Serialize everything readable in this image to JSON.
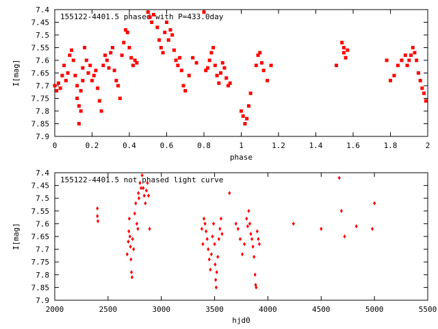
{
  "chart_data": [
    {
      "type": "scatter",
      "title": "155122-4401.5 phased with P=433.0day",
      "xlabel": "phase",
      "ylabel": "I[mag]",
      "xlim": [
        0,
        2
      ],
      "ylim": [
        7.9,
        7.4
      ],
      "y_inverted": true,
      "xticks": [
        "0",
        "0.2",
        "0.4",
        "0.6",
        "0.8",
        "1",
        "1.2",
        "1.4",
        "1.6",
        "1.8",
        "2"
      ],
      "yticks": [
        "7.4",
        "7.45",
        "7.5",
        "7.55",
        "7.6",
        "7.65",
        "7.7",
        "7.75",
        "7.8",
        "7.85",
        "7.9"
      ],
      "grid": false,
      "legend": "none",
      "marker_color": "#ff0000",
      "marker": "filled-square",
      "series": [
        {
          "points": [
            [
              0.0,
              7.7
            ],
            [
              0.01,
              7.72
            ],
            [
              0.02,
              7.69
            ],
            [
              0.03,
              7.71
            ],
            [
              0.04,
              7.66
            ],
            [
              0.05,
              7.62
            ],
            [
              0.06,
              7.68
            ],
            [
              0.07,
              7.65
            ],
            [
              0.08,
              7.58
            ],
            [
              0.09,
              7.56
            ],
            [
              0.1,
              7.6
            ],
            [
              0.11,
              7.66
            ],
            [
              0.12,
              7.7
            ],
            [
              0.12,
              7.75
            ],
            [
              0.13,
              7.78
            ],
            [
              0.13,
              7.85
            ],
            [
              0.14,
              7.8
            ],
            [
              0.14,
              7.72
            ],
            [
              0.15,
              7.63
            ],
            [
              0.15,
              7.68
            ],
            [
              0.16,
              7.55
            ],
            [
              0.17,
              7.6
            ],
            [
              0.18,
              7.65
            ],
            [
              0.19,
              7.62
            ],
            [
              0.2,
              7.68
            ],
            [
              0.21,
              7.66
            ],
            [
              0.22,
              7.64
            ],
            [
              0.23,
              7.71
            ],
            [
              0.24,
              7.76
            ],
            [
              0.25,
              7.8
            ],
            [
              0.26,
              7.62
            ],
            [
              0.27,
              7.58
            ],
            [
              0.28,
              7.6
            ],
            [
              0.29,
              7.63
            ],
            [
              0.3,
              7.57
            ],
            [
              0.31,
              7.55
            ],
            [
              0.32,
              7.64
            ],
            [
              0.33,
              7.68
            ],
            [
              0.34,
              7.7
            ],
            [
              0.35,
              7.75
            ],
            [
              0.36,
              7.58
            ],
            [
              0.37,
              7.53
            ],
            [
              0.38,
              7.48
            ],
            [
              0.39,
              7.49
            ],
            [
              0.4,
              7.55
            ],
            [
              0.41,
              7.59
            ],
            [
              0.42,
              7.62
            ],
            [
              0.43,
              7.6
            ],
            [
              0.44,
              7.61
            ],
            [
              0.5,
              7.41
            ],
            [
              0.51,
              7.43
            ],
            [
              0.52,
              7.45
            ],
            [
              0.53,
              7.42
            ],
            [
              0.55,
              7.47
            ],
            [
              0.56,
              7.52
            ],
            [
              0.57,
              7.55
            ],
            [
              0.58,
              7.57
            ],
            [
              0.59,
              7.49
            ],
            [
              0.6,
              7.45
            ],
            [
              0.61,
              7.52
            ],
            [
              0.62,
              7.48
            ],
            [
              0.63,
              7.5
            ],
            [
              0.64,
              7.56
            ],
            [
              0.65,
              7.6
            ],
            [
              0.66,
              7.62
            ],
            [
              0.67,
              7.59
            ],
            [
              0.68,
              7.64
            ],
            [
              0.69,
              7.7
            ],
            [
              0.7,
              7.72
            ],
            [
              0.72,
              7.66
            ],
            [
              0.74,
              7.59
            ],
            [
              0.76,
              7.61
            ],
            [
              0.8,
              7.41
            ],
            [
              0.81,
              7.64
            ],
            [
              0.82,
              7.63
            ],
            [
              0.83,
              7.6
            ],
            [
              0.84,
              7.57
            ],
            [
              0.85,
              7.55
            ],
            [
              0.86,
              7.62
            ],
            [
              0.87,
              7.66
            ],
            [
              0.88,
              7.69
            ],
            [
              0.89,
              7.65
            ],
            [
              0.9,
              7.61
            ],
            [
              0.91,
              7.63
            ],
            [
              0.92,
              7.67
            ],
            [
              0.93,
              7.7
            ],
            [
              0.94,
              7.69
            ],
            [
              1.0,
              7.8
            ],
            [
              1.01,
              7.82
            ],
            [
              1.02,
              7.85
            ],
            [
              1.03,
              7.83
            ],
            [
              1.04,
              7.78
            ],
            [
              1.05,
              7.73
            ],
            [
              1.08,
              7.62
            ],
            [
              1.09,
              7.58
            ],
            [
              1.1,
              7.57
            ],
            [
              1.11,
              7.61
            ],
            [
              1.12,
              7.64
            ],
            [
              1.14,
              7.68
            ],
            [
              1.16,
              7.62
            ],
            [
              1.51,
              7.62
            ],
            [
              1.54,
              7.53
            ],
            [
              1.55,
              7.55
            ],
            [
              1.55,
              7.57
            ],
            [
              1.56,
              7.59
            ],
            [
              1.57,
              7.56
            ],
            [
              1.78,
              7.6
            ],
            [
              1.8,
              7.68
            ],
            [
              1.82,
              7.66
            ],
            [
              1.84,
              7.62
            ],
            [
              1.86,
              7.6
            ],
            [
              1.88,
              7.58
            ],
            [
              1.89,
              7.62
            ],
            [
              1.9,
              7.6
            ],
            [
              1.91,
              7.58
            ],
            [
              1.92,
              7.55
            ],
            [
              1.93,
              7.57
            ],
            [
              1.94,
              7.6
            ],
            [
              1.95,
              7.65
            ],
            [
              1.96,
              7.68
            ],
            [
              1.97,
              7.71
            ],
            [
              1.98,
              7.73
            ],
            [
              1.99,
              7.76
            ]
          ]
        }
      ]
    },
    {
      "type": "scatter",
      "title": "155122-4401.5 not phased light curve",
      "xlabel": "hjd0",
      "ylabel": "I[mag]",
      "xlim": [
        2000,
        5500
      ],
      "ylim": [
        7.9,
        7.4
      ],
      "y_inverted": true,
      "xticks": [
        "2000",
        "2500",
        "3000",
        "3500",
        "4000",
        "4500",
        "5000",
        "5500"
      ],
      "yticks": [
        "7.4",
        "7.45",
        "7.5",
        "7.55",
        "7.6",
        "7.65",
        "7.7",
        "7.75",
        "7.8",
        "7.85",
        "7.9"
      ],
      "grid": false,
      "legend": "none",
      "marker_color": "#ff0000",
      "marker": "small-diamond",
      "series": [
        {
          "points": [
            [
              2400,
              7.54
            ],
            [
              2400,
              7.57
            ],
            [
              2405,
              7.59
            ],
            [
              2680,
              7.72
            ],
            [
              2690,
              7.67
            ],
            [
              2695,
              7.63
            ],
            [
              2700,
              7.58
            ],
            [
              2705,
              7.65
            ],
            [
              2710,
              7.69
            ],
            [
              2715,
              7.74
            ],
            [
              2720,
              7.79
            ],
            [
              2725,
              7.81
            ],
            [
              2730,
              7.66
            ],
            [
              2740,
              7.7
            ],
            [
              2750,
              7.56
            ],
            [
              2760,
              7.52
            ],
            [
              2770,
              7.6
            ],
            [
              2780,
              7.62
            ],
            [
              2785,
              7.48
            ],
            [
              2790,
              7.5
            ],
            [
              2800,
              7.44
            ],
            [
              2810,
              7.46
            ],
            [
              2820,
              7.41
            ],
            [
              2830,
              7.46
            ],
            [
              2840,
              7.49
            ],
            [
              2850,
              7.52
            ],
            [
              2860,
              7.47
            ],
            [
              2870,
              7.44
            ],
            [
              2880,
              7.49
            ],
            [
              2890,
              7.62
            ],
            [
              3380,
              7.62
            ],
            [
              3390,
              7.68
            ],
            [
              3400,
              7.58
            ],
            [
              3410,
              7.6
            ],
            [
              3420,
              7.63
            ],
            [
              3430,
              7.66
            ],
            [
              3440,
              7.7
            ],
            [
              3450,
              7.74
            ],
            [
              3460,
              7.78
            ],
            [
              3470,
              7.72
            ],
            [
              3480,
              7.65
            ],
            [
              3490,
              7.6
            ],
            [
              3500,
              7.68
            ],
            [
              3505,
              7.76
            ],
            [
              3510,
              7.82
            ],
            [
              3515,
              7.85
            ],
            [
              3520,
              7.79
            ],
            [
              3530,
              7.73
            ],
            [
              3540,
              7.66
            ],
            [
              3550,
              7.62
            ],
            [
              3560,
              7.58
            ],
            [
              3570,
              7.64
            ],
            [
              3640,
              7.48
            ],
            [
              3700,
              7.6
            ],
            [
              3720,
              7.62
            ],
            [
              3740,
              7.66
            ],
            [
              3760,
              7.72
            ],
            [
              3780,
              7.68
            ],
            [
              3800,
              7.58
            ],
            [
              3810,
              7.61
            ],
            [
              3820,
              7.55
            ],
            [
              3830,
              7.6
            ],
            [
              3840,
              7.64
            ],
            [
              3850,
              7.66
            ],
            [
              3860,
              7.69
            ],
            [
              3870,
              7.73
            ],
            [
              3880,
              7.8
            ],
            [
              3885,
              7.84
            ],
            [
              3890,
              7.85
            ],
            [
              3900,
              7.63
            ],
            [
              3910,
              7.66
            ],
            [
              3920,
              7.68
            ],
            [
              4240,
              7.6
            ],
            [
              4500,
              7.62
            ],
            [
              4670,
              7.42
            ],
            [
              4690,
              7.55
            ],
            [
              4720,
              7.65
            ],
            [
              4830,
              7.61
            ],
            [
              4980,
              7.62
            ],
            [
              5000,
              7.52
            ]
          ]
        }
      ]
    }
  ]
}
